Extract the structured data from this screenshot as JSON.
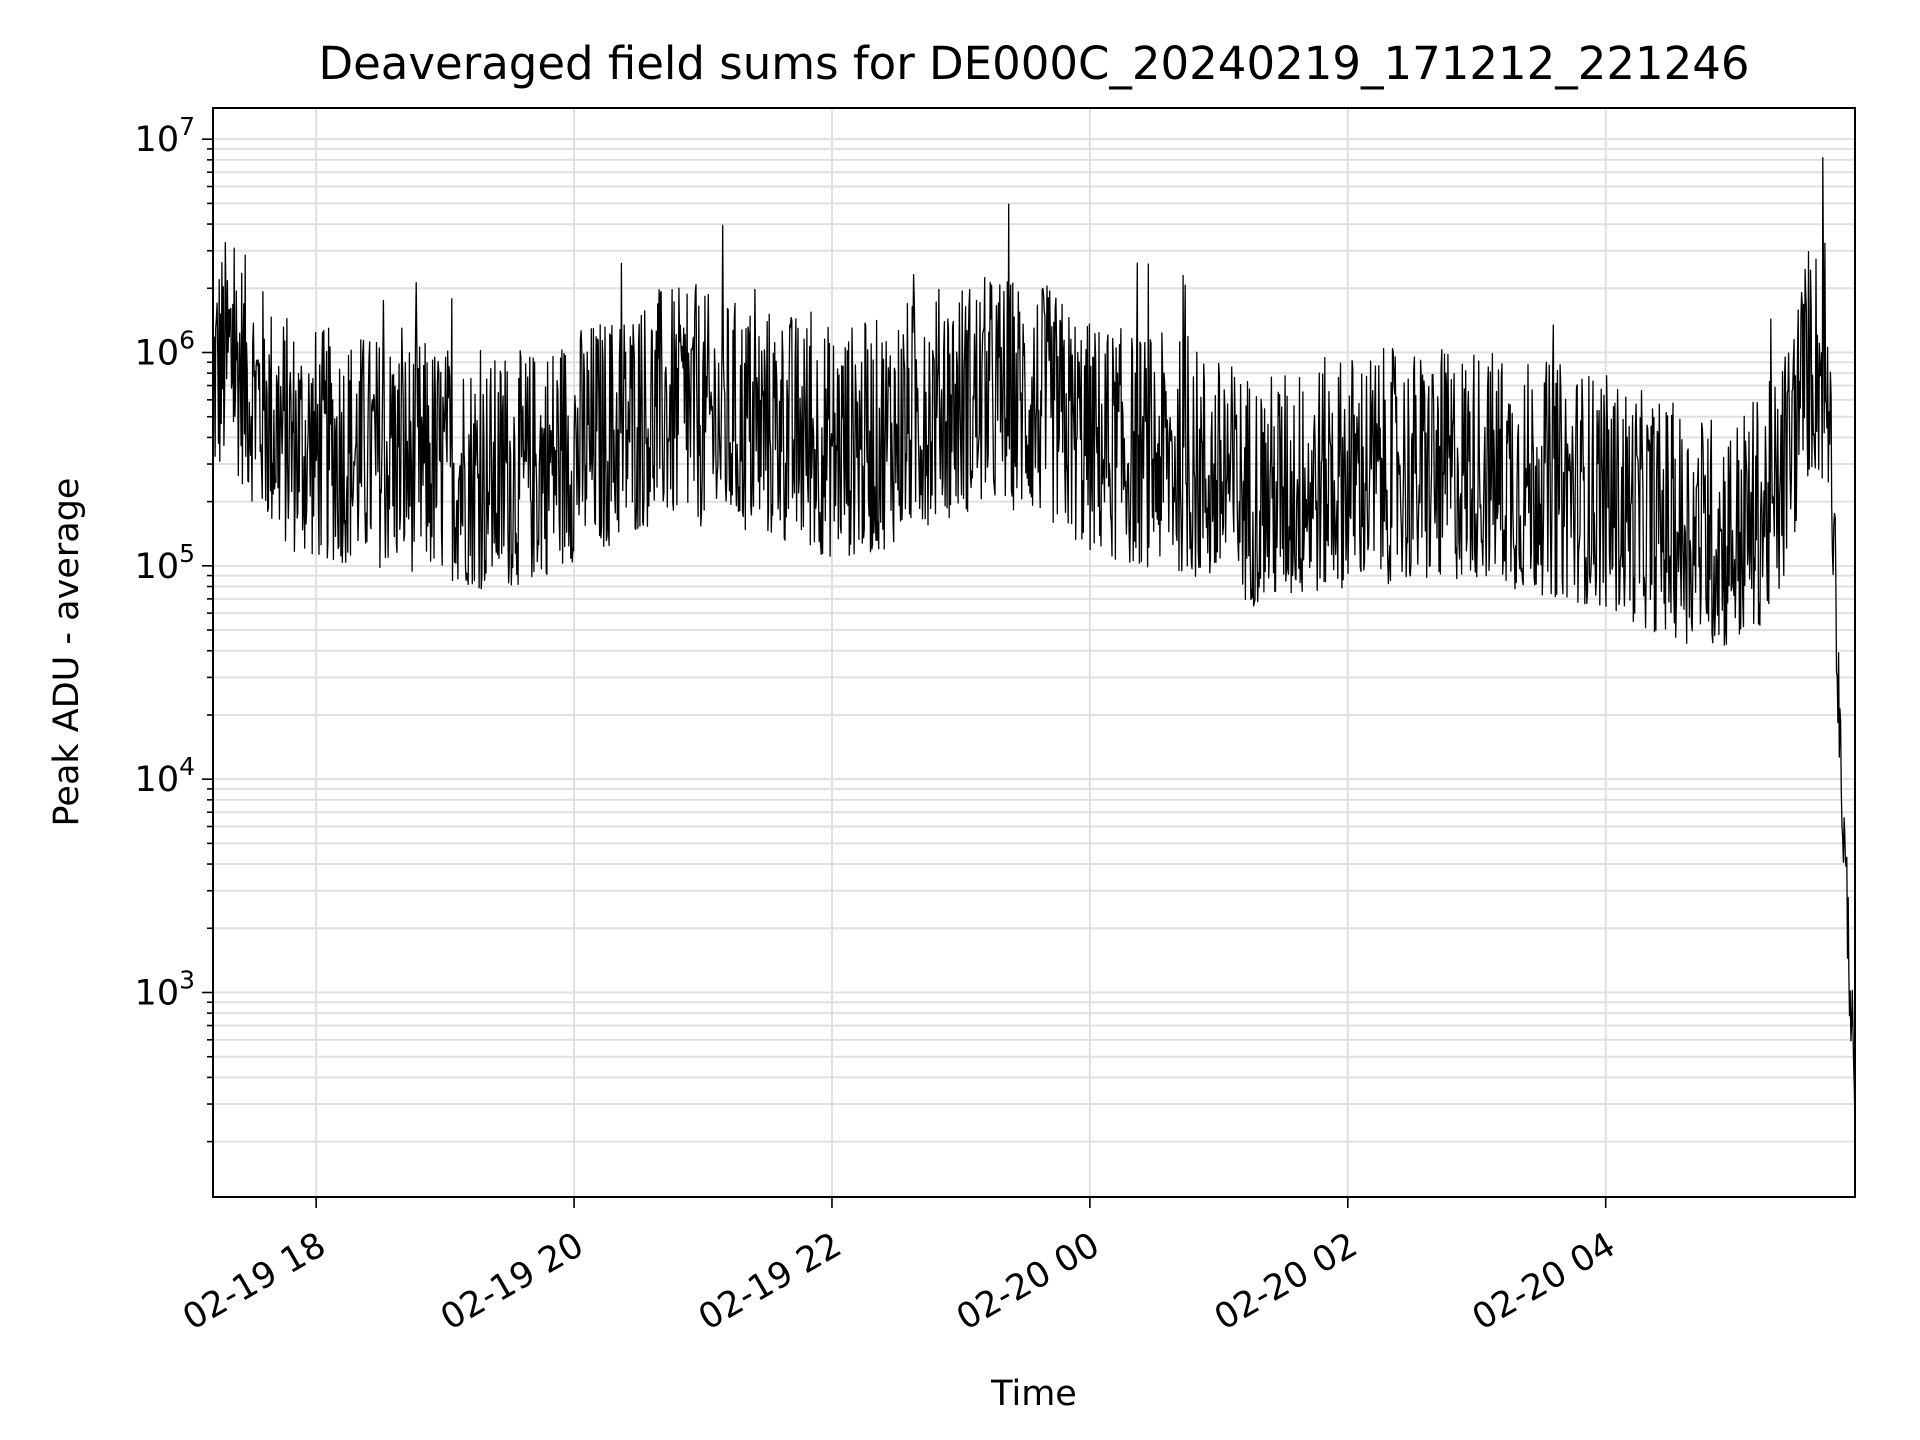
{
  "chart_data": {
    "type": "line",
    "title": "Deaveraged field sums for DE000C_20240219_171212_221246",
    "xlabel": "Time",
    "ylabel": "Peak ADU - average",
    "yscale": "log",
    "ylim": [
      110,
      14000000
    ],
    "xlim": [
      "2024-02-19 17:12",
      "2024-02-20 05:56"
    ],
    "grid": true,
    "grid_minor": true,
    "x_ticks": [
      {
        "t": "2024-02-19 18:00",
        "label": "02-19 18"
      },
      {
        "t": "2024-02-19 20:00",
        "label": "02-19 20"
      },
      {
        "t": "2024-02-19 22:00",
        "label": "02-19 22"
      },
      {
        "t": "2024-02-20 00:00",
        "label": "02-20 00"
      },
      {
        "t": "2024-02-20 02:00",
        "label": "02-20 02"
      },
      {
        "t": "2024-02-20 04:00",
        "label": "02-20 04"
      }
    ],
    "y_ticks": [
      {
        "value": 1000,
        "base": "10",
        "exp": "3"
      },
      {
        "value": 10000,
        "base": "10",
        "exp": "4"
      },
      {
        "value": 100000,
        "base": "10",
        "exp": "5"
      },
      {
        "value": 1000000,
        "base": "10",
        "exp": "6"
      },
      {
        "value": 10000000,
        "base": "10",
        "exp": "7"
      }
    ],
    "series_color": "#000000",
    "series": [
      {
        "x": [
          "2024-02-19 17:12",
          "2024-02-19 17:20",
          "2024-02-19 17:30",
          "2024-02-19 17:40",
          "2024-02-19 17:50",
          "2024-02-19 18:00",
          "2024-02-19 18:20",
          "2024-02-19 18:40",
          "2024-02-19 19:00",
          "2024-02-19 19:20",
          "2024-02-19 19:40",
          "2024-02-19 20:00",
          "2024-02-19 20:20",
          "2024-02-19 20:40",
          "2024-02-19 21:00",
          "2024-02-19 21:20",
          "2024-02-19 21:40",
          "2024-02-19 22:00",
          "2024-02-19 22:20",
          "2024-02-19 22:40",
          "2024-02-19 23:00",
          "2024-02-19 23:20",
          "2024-02-19 23:40",
          "2024-02-20 00:00",
          "2024-02-20 00:20",
          "2024-02-20 00:40",
          "2024-02-20 01:00",
          "2024-02-20 01:20",
          "2024-02-20 01:40",
          "2024-02-20 02:00",
          "2024-02-20 02:20",
          "2024-02-20 02:40",
          "2024-02-20 03:00",
          "2024-02-20 03:20",
          "2024-02-20 03:40",
          "2024-02-20 04:00",
          "2024-02-20 04:20",
          "2024-02-20 04:40",
          "2024-02-20 05:00",
          "2024-02-20 05:20",
          "2024-02-20 05:35",
          "2024-02-20 05:40",
          "2024-02-20 05:45",
          "2024-02-20 05:48",
          "2024-02-20 05:50",
          "2024-02-20 05:52",
          "2024-02-20 05:54",
          "2024-02-20 05:56"
        ],
        "y": [
          900000,
          1200000,
          800000,
          550000,
          450000,
          420000,
          400000,
          380000,
          350000,
          300000,
          330000,
          420000,
          500000,
          650000,
          600000,
          550000,
          500000,
          430000,
          450000,
          600000,
          700000,
          750000,
          650000,
          450000,
          400000,
          380000,
          300000,
          250000,
          280000,
          320000,
          330000,
          320000,
          350000,
          300000,
          280000,
          250000,
          200000,
          170000,
          160000,
          250000,
          1100000,
          1000000,
          700000,
          30000,
          8000,
          3000,
          1000,
          250
        ],
        "noise_low": 0.25,
        "noise_high": 3.2,
        "peak": {
          "t": "2024-02-20 05:41",
          "value": 8200000
        },
        "min": {
          "t": "2024-02-20 05:56",
          "value": 250
        }
      }
    ]
  }
}
